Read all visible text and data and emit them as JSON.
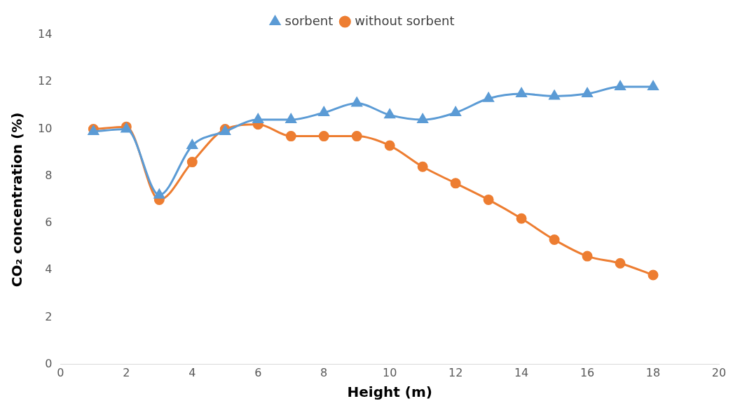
{
  "chart_data": {
    "type": "line",
    "xlabel": "Height (m)",
    "ylabel": "CO₂ concentration (%)",
    "x": [
      1,
      2,
      3,
      4,
      5,
      6,
      7,
      8,
      9,
      10,
      11,
      12,
      13,
      14,
      15,
      16,
      17,
      18
    ],
    "series": [
      {
        "name": "sorbent",
        "color": "#5b9bd5",
        "marker": "triangle",
        "values": [
          9.9,
          10.0,
          7.2,
          9.3,
          9.9,
          10.4,
          10.4,
          10.7,
          11.1,
          10.6,
          10.4,
          10.7,
          11.3,
          11.5,
          11.4,
          11.5,
          11.8,
          11.8
        ]
      },
      {
        "name": "without sorbent",
        "color": "#ed7d31",
        "marker": "circle",
        "values": [
          10.0,
          10.1,
          7.0,
          8.6,
          10.0,
          10.2,
          9.7,
          9.7,
          9.7,
          9.3,
          8.4,
          7.7,
          7.0,
          6.2,
          5.3,
          4.6,
          4.3,
          3.8
        ]
      }
    ],
    "xlim": [
      0,
      20
    ],
    "xticks": [
      0,
      2,
      4,
      6,
      8,
      10,
      12,
      14,
      16,
      18,
      20
    ],
    "ylim": [
      0,
      14
    ],
    "yticks": [
      0,
      2,
      4,
      6,
      8,
      10,
      12,
      14
    ],
    "grid": false,
    "legend": "top"
  }
}
